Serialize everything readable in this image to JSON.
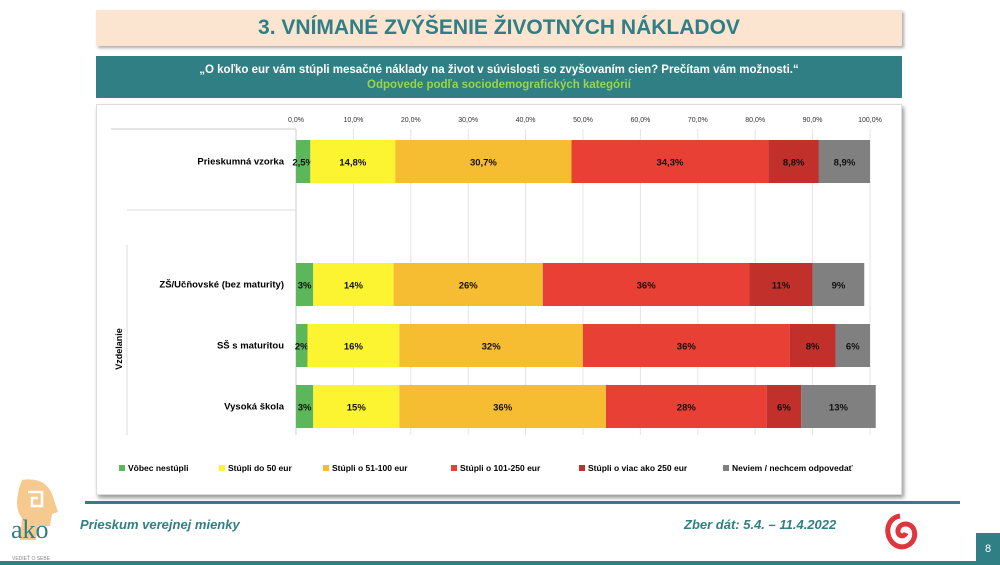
{
  "header": {
    "title": "3. VNÍMANÉ ZVÝŠENIE ŽIVOTNÝCH NÁKLADOV"
  },
  "question": {
    "text": "„O koľko eur vám stúpli mesačné náklady na život v súvislosti so zvyšovaním cien? Prečítam vám možnosti.“",
    "subtitle": "Odpovede podľa sociodemografických kategórií"
  },
  "footer": {
    "left": "Prieskum verejnej mienky",
    "right": "Zber dát: 5.4. – 11.4.2022",
    "page": "8",
    "logo_text": "ako",
    "logo_tagline": "VEDIEŤ O SEBE"
  },
  "colors": {
    "accent": "#2f7f84",
    "title_bg": "#fbe5d0"
  },
  "chart_data": {
    "type": "bar",
    "orientation": "horizontal-stacked-100",
    "xlim": [
      0,
      100
    ],
    "ticks": [
      "0,0%",
      "10,0%",
      "20,0%",
      "30,0%",
      "40,0%",
      "50,0%",
      "60,0%",
      "70,0%",
      "80,0%",
      "90,0%",
      "100,0%"
    ],
    "grid": true,
    "legend_position": "bottom",
    "group_label": "Vzdelanie",
    "categories": [
      "Prieskumná vzorka",
      "ZŠ/Učňovské (bez maturity)",
      "SŠ s maturitou",
      "Vysoká škola"
    ],
    "series": [
      {
        "name": "Vôbec nestúpli",
        "color": "#5cb65a",
        "values": [
          2.5,
          3,
          2,
          3
        ],
        "labels": [
          "2,5%",
          "3%",
          "2%",
          "3%"
        ]
      },
      {
        "name": "Stúpli do 50 eur",
        "color": "#fcf430",
        "values": [
          14.8,
          14,
          16,
          15
        ],
        "labels": [
          "14,8%",
          "14%",
          "16%",
          "15%"
        ]
      },
      {
        "name": "Stúpli o 51-100 eur",
        "color": "#f6bd33",
        "values": [
          30.7,
          26,
          32,
          36
        ],
        "labels": [
          "30,7%",
          "26%",
          "32%",
          "36%"
        ]
      },
      {
        "name": "Stúpli o 101-250 eur",
        "color": "#e84034",
        "values": [
          34.3,
          36,
          36,
          28
        ],
        "labels": [
          "34,3%",
          "36%",
          "36%",
          "28%"
        ]
      },
      {
        "name": "Stúpli o viac ako 250 eur",
        "color": "#c1302b",
        "values": [
          8.8,
          11,
          8,
          6
        ],
        "labels": [
          "8,8%",
          "11%",
          "8%",
          "6%"
        ]
      },
      {
        "name": "Neviem / nechcem odpovedať",
        "color": "#808080",
        "values": [
          8.9,
          9,
          6,
          13
        ],
        "labels": [
          "8,9%",
          "9%",
          "6%",
          "13%"
        ]
      }
    ]
  }
}
